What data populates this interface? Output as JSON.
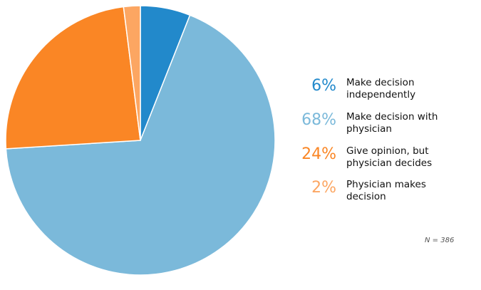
{
  "chart_data": {
    "type": "pie",
    "slices": [
      {
        "label": "Make decision\nindependently",
        "pct_label": "6%",
        "value": 6,
        "color": "#2289cb"
      },
      {
        "label": "Make decision with\nphysician",
        "pct_label": "68%",
        "value": 68,
        "color": "#7bb9da"
      },
      {
        "label": "Give opinion, but\nphysician decides",
        "pct_label": "24%",
        "value": 24,
        "color": "#fa8625"
      },
      {
        "label": "Physician makes\ndecision",
        "pct_label": "2%",
        "value": 2,
        "color": "#fca662"
      }
    ],
    "start": "12 o'clock, clockwise",
    "note": "N = 386"
  }
}
